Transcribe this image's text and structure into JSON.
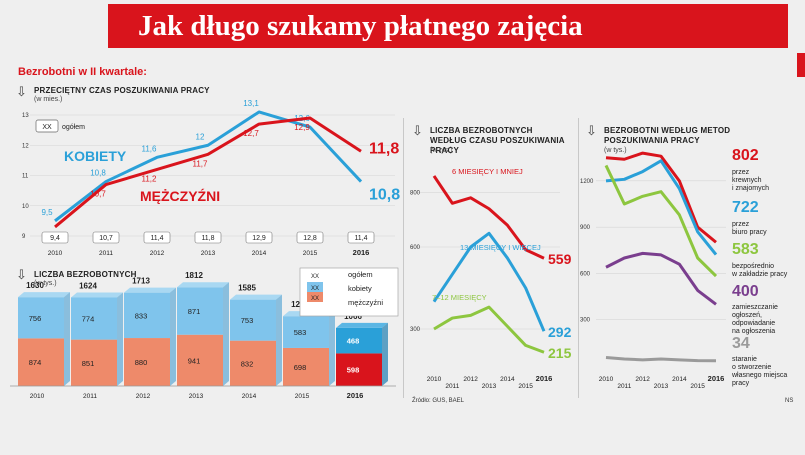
{
  "header": {
    "title": "Jak długo szukamy płatnego zajęcia",
    "section": "Bezrobotni w II kwartale:"
  },
  "colors": {
    "red": "#d9141c",
    "blue": "#2aa0d8",
    "green": "#8dc63f",
    "purple": "#7a3e8e",
    "gray": "#9a9a9a",
    "bar_blue": "#7fc4ec",
    "bar_salmon": "#ee8a6a"
  },
  "chart_data": [
    {
      "type": "line",
      "title": "Przeciętny czas poszukiwania pracy",
      "unit": "(w mies.)",
      "x": [
        "2010",
        "2011",
        "2012",
        "2013",
        "2014",
        "2015",
        "2016"
      ],
      "yticks": [
        "9",
        "10",
        "11",
        "12",
        "13"
      ],
      "ylim": [
        9,
        13
      ],
      "legend": {
        "box": "XX",
        "label": "ogółem"
      },
      "series": [
        {
          "name": "KOBIETY",
          "values": [
            9.5,
            10.8,
            11.6,
            12.0,
            13.1,
            12.6,
            10.8
          ],
          "labels": [
            "9,5",
            "10,8",
            "11,6",
            "12",
            "13,1",
            "12,6",
            "10,8"
          ]
        },
        {
          "name": "MĘŻCZYŹNI",
          "values": [
            9.3,
            10.7,
            11.2,
            11.7,
            12.7,
            12.9,
            11.8
          ],
          "labels": [
            "9,3",
            "10,7",
            "11,2",
            "11,7",
            "12,7",
            "12,9",
            "11,8"
          ]
        }
      ],
      "totals": [
        "9,4",
        "10,7",
        "11,4",
        "11,8",
        "12,9",
        "12,8",
        "11,4"
      ]
    },
    {
      "type": "bar",
      "title": "Liczba bezrobotnych",
      "unit": "(w tys.)",
      "categories": [
        "2010",
        "2011",
        "2012",
        "2013",
        "2014",
        "2015",
        "2016"
      ],
      "totals": [
        1630,
        1624,
        1713,
        1812,
        1585,
        1281,
        1066
      ],
      "series": [
        {
          "name": "kobiety",
          "values": [
            756,
            774,
            833,
            871,
            753,
            583,
            468
          ]
        },
        {
          "name": "mężczyźni",
          "values": [
            874,
            851,
            880,
            941,
            832,
            698,
            598
          ]
        }
      ],
      "legend": {
        "total": "ogółem",
        "women": "kobiety",
        "men": "mężczyźni",
        "xx": "XX"
      }
    },
    {
      "type": "line",
      "title": "Liczba bezrobotnych według czasu poszukiwania pracy",
      "unit": "(w tys.)",
      "x": [
        "2010",
        "2011",
        "2012",
        "2013",
        "2014",
        "2015",
        "2016"
      ],
      "yticks": [
        "300",
        "600",
        "800"
      ],
      "ylim": [
        150,
        900
      ],
      "series": [
        {
          "name": "6 MIESIĘCY I MNIEJ",
          "values": [
            860,
            760,
            780,
            740,
            680,
            590,
            559
          ],
          "end_label": "559"
        },
        {
          "name": "13 MIESIĘCY I WIĘCEJ",
          "values": [
            400,
            500,
            600,
            650,
            560,
            450,
            292
          ],
          "end_label": "292"
        },
        {
          "name": "7–12 MIESIĘCY",
          "values": [
            300,
            340,
            350,
            380,
            310,
            240,
            215
          ],
          "end_label": "215"
        }
      ]
    },
    {
      "type": "line",
      "title": "Bezrobotni według metod poszukiwania pracy",
      "unit": "(w tys.)",
      "x": [
        "2010",
        "2011",
        "2012",
        "2013",
        "2014",
        "2015",
        "2016"
      ],
      "yticks": [
        "300",
        "600",
        "900",
        "1200"
      ],
      "ylim": [
        0,
        1400
      ],
      "series": [
        {
          "name": "przez krewnych i znajomych",
          "values": [
            1350,
            1340,
            1380,
            1360,
            1200,
            900,
            802
          ],
          "end_label": "802"
        },
        {
          "name": "przez biuro pracy",
          "values": [
            1200,
            1210,
            1260,
            1330,
            1150,
            870,
            722
          ],
          "end_label": "722"
        },
        {
          "name": "bezpośrednio w zakładzie pracy",
          "values": [
            1300,
            1050,
            1100,
            1130,
            980,
            700,
            583
          ],
          "end_label": "583"
        },
        {
          "name": "zamieszczanie ogłoszeń, odpowiadanie na ogłoszenia",
          "values": [
            640,
            700,
            730,
            720,
            660,
            490,
            400
          ],
          "end_label": "400"
        },
        {
          "name": "staranie o stworzenie własnego miejsca pracy",
          "values": [
            55,
            45,
            40,
            45,
            40,
            35,
            34
          ],
          "end_label": "34"
        }
      ]
    }
  ],
  "footer": {
    "source": "Źródło: GUS, BAEL",
    "ns": "NS"
  }
}
